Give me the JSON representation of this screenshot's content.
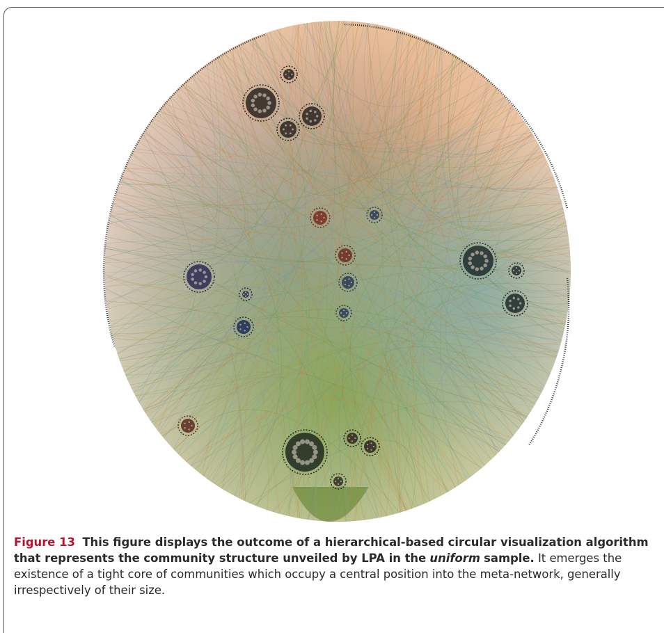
{
  "figure": {
    "label": "Figure 13",
    "caption_bold": "This figure displays the outcome of a hierarchical-based circular visualization algorithm that represents the community structure unveiled by LPA in the",
    "caption_italic": "uniform",
    "caption_bold_end": "sample.",
    "caption_body": "It emerges the existence of a tight core of communities which occupy a central position into the meta-network, generally irrespectively of their size."
  }
}
